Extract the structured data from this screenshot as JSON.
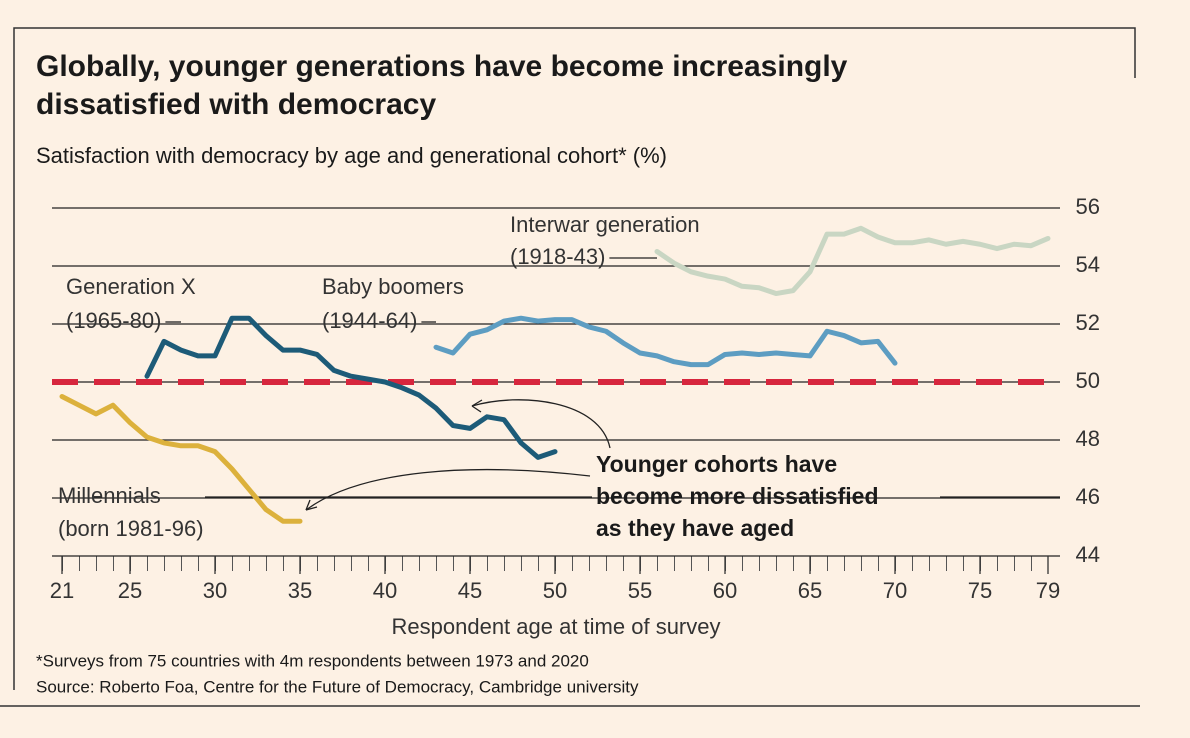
{
  "chart_data": {
    "type": "line",
    "title": [
      "Globally, younger generations have become increasingly",
      "dissatisfied with democracy"
    ],
    "subtitle": "Satisfaction with democracy by age and generational cohort* (%)",
    "x_label": "Respondent age at time of survey",
    "xlim": [
      21,
      79
    ],
    "xticks": [
      21,
      25,
      30,
      35,
      40,
      45,
      50,
      55,
      60,
      65,
      70,
      75,
      79
    ],
    "ylim": [
      44,
      56
    ],
    "yticks": [
      44,
      46,
      48,
      50,
      52,
      54,
      56
    ],
    "grid": true,
    "reference_line": {
      "value": 50,
      "color": "#d7263d"
    },
    "series": [
      {
        "name": "Millennials",
        "cohort": "(born 1981-96)",
        "color": "#dcb13c",
        "x": [
          21,
          22,
          23,
          24,
          25,
          26,
          27,
          28,
          29,
          30,
          31,
          32,
          33,
          34,
          35
        ],
        "values": [
          49.5,
          49.2,
          48.9,
          49.2,
          48.6,
          48.1,
          47.9,
          47.8,
          47.8,
          47.6,
          47,
          46.3,
          45.6,
          45.2,
          45.2
        ]
      },
      {
        "name": "Generation X",
        "cohort": "(1965-80)",
        "color": "#1d5b78",
        "x": [
          26,
          27,
          28,
          29,
          30,
          31,
          32,
          33,
          34,
          35,
          36,
          37,
          38,
          39,
          40,
          41,
          42,
          43,
          44,
          45,
          46,
          47,
          48,
          49,
          50
        ],
        "values": [
          50.2,
          51.4,
          51.1,
          50.9,
          50.9,
          52.2,
          52.2,
          51.6,
          51.1,
          51.1,
          50.95,
          50.4,
          50.2,
          50.1,
          50,
          49.8,
          49.55,
          49.1,
          48.5,
          48.4,
          48.8,
          48.7,
          47.9,
          47.4,
          47.6
        ]
      },
      {
        "name": "Baby boomers",
        "cohort": "(1944-64)",
        "color": "#5d9dc2",
        "x": [
          43,
          44,
          45,
          46,
          47,
          48,
          49,
          50,
          51,
          52,
          53,
          54,
          55,
          56,
          57,
          58,
          59,
          60,
          61,
          62,
          63,
          64,
          65,
          66,
          67,
          68,
          69,
          70
        ],
        "values": [
          51.2,
          51,
          51.65,
          51.8,
          52.1,
          52.2,
          52.1,
          52.15,
          52.15,
          51.9,
          51.75,
          51.35,
          51,
          50.9,
          50.7,
          50.6,
          50.6,
          50.95,
          51,
          50.95,
          51,
          50.95,
          50.9,
          51.75,
          51.6,
          51.35,
          51.4,
          50.65
        ]
      },
      {
        "name": "Interwar generation",
        "cohort": "(1918-43)",
        "color": "#c9d6c3",
        "x": [
          56,
          57,
          58,
          59,
          60,
          61,
          62,
          63,
          64,
          65,
          66,
          67,
          68,
          69,
          70,
          71,
          72,
          73,
          74,
          75,
          76,
          77,
          78,
          79
        ],
        "values": [
          54.5,
          54.1,
          53.8,
          53.65,
          53.55,
          53.3,
          53.25,
          53.05,
          53.15,
          53.8,
          55.1,
          55.1,
          55.3,
          55,
          54.8,
          54.8,
          54.9,
          54.75,
          54.85,
          54.75,
          54.6,
          54.75,
          54.7,
          54.95
        ]
      }
    ],
    "annotation": [
      "Younger cohorts have",
      "become more dissatisfied",
      "as they have aged"
    ],
    "footnote": "*Surveys from 75 countries with 4m respondents between 1973 and 2020",
    "source": "Source: Roberto Foa, Centre for the Future of Democracy, Cambridge university"
  }
}
